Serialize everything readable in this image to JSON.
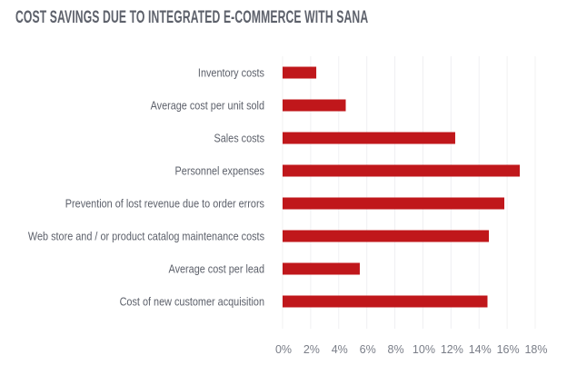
{
  "chart_data": {
    "type": "bar",
    "orientation": "horizontal",
    "title": "COST SAVINGS DUE TO INTEGRATED E-COMMERCE WITH SANA",
    "categories": [
      "Inventory costs",
      "Average cost per unit sold",
      "Sales costs",
      "Personnel expenses",
      "Prevention of lost revenue due to order errors",
      "Web store and / or product catalog maintenance costs",
      "Average cost per lead",
      "Cost of new customer acquisition"
    ],
    "values": [
      2.4,
      4.5,
      12.3,
      16.9,
      15.8,
      14.7,
      5.5,
      14.6
    ],
    "unit": "%",
    "xlim": [
      0,
      18
    ],
    "xticks": [
      "0%",
      "2%",
      "4%",
      "6%",
      "8%",
      "10%",
      "12%",
      "14%",
      "16%",
      "18%"
    ],
    "xlabel": "",
    "ylabel": "",
    "grid": "vertical",
    "legend": "none",
    "bar_color": "#c0171b"
  }
}
